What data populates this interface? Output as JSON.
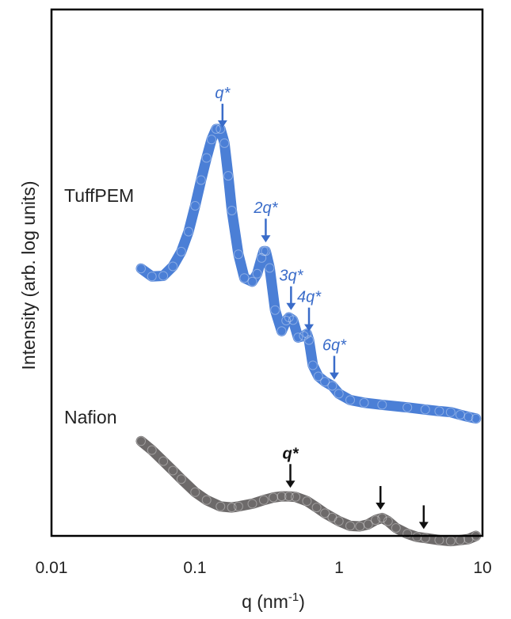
{
  "chart_data": {
    "type": "line",
    "xscale": "log",
    "xlim": [
      0.01,
      10
    ],
    "xticks": [
      "0.01",
      "0.1",
      "1",
      "10"
    ],
    "xlabel": "q (nm",
    "xlabel_sup": "-1",
    "xlabel_end": ")",
    "ylabel": "Intensity (arb. log units)",
    "yscale": "log",
    "ylim": [
      0,
      100
    ],
    "yticks_shown": false,
    "grid": false,
    "colors": {
      "TuffPEM": "#4b7fd6",
      "Nafion": "#6d6a6a",
      "blue_annotation": "#3a6cc9",
      "black_annotation": "#111111"
    },
    "series": [
      {
        "name": "TuffPEM",
        "x": [
          0.042,
          0.05,
          0.06,
          0.07,
          0.08,
          0.09,
          0.1,
          0.11,
          0.12,
          0.13,
          0.14,
          0.15,
          0.16,
          0.17,
          0.18,
          0.2,
          0.22,
          0.25,
          0.27,
          0.29,
          0.3,
          0.31,
          0.33,
          0.36,
          0.4,
          0.43,
          0.45,
          0.48,
          0.52,
          0.57,
          0.6,
          0.62,
          0.66,
          0.72,
          0.8,
          0.9,
          1.0,
          1.2,
          1.5,
          2,
          3,
          4,
          5,
          6,
          7,
          8,
          9
        ],
        "y": [
          50.8,
          49.3,
          49.4,
          51.2,
          54.0,
          57.8,
          62.7,
          67.6,
          71.8,
          75.3,
          77.3,
          77.3,
          74.6,
          68.4,
          61.8,
          53.5,
          49.0,
          48.3,
          49.8,
          52.8,
          54.1,
          54.1,
          50.9,
          42.9,
          38.9,
          40.9,
          41.5,
          41.0,
          37.7,
          38.0,
          38.4,
          37.2,
          32.4,
          30.3,
          29.3,
          28.5,
          27.0,
          25.8,
          25.3,
          24.9,
          24.4,
          24.0,
          23.7,
          23.5,
          23.0,
          22.6,
          22.3
        ]
      },
      {
        "name": "Nafion",
        "x": [
          0.042,
          0.05,
          0.06,
          0.07,
          0.08,
          0.1,
          0.12,
          0.15,
          0.18,
          0.2,
          0.25,
          0.3,
          0.35,
          0.4,
          0.45,
          0.5,
          0.6,
          0.7,
          0.8,
          0.9,
          1.0,
          1.2,
          1.4,
          1.6,
          1.8,
          2.0,
          2.2,
          2.5,
          3.0,
          3.5,
          4.0,
          5,
          6,
          7,
          8,
          9
        ],
        "y": [
          18.0,
          16.3,
          14.2,
          12.4,
          10.8,
          8.3,
          6.8,
          5.6,
          5.4,
          5.6,
          6.1,
          6.8,
          7.3,
          7.5,
          7.5,
          7.4,
          6.6,
          5.4,
          4.3,
          3.5,
          2.8,
          1.9,
          1.8,
          2.2,
          3.0,
          3.4,
          2.8,
          1.5,
          0.4,
          -0.2,
          -0.4,
          -0.8,
          -1.0,
          -0.8,
          -0.6,
          0.0
        ]
      }
    ],
    "series_labels": [
      "TuffPEM",
      "Nafion"
    ],
    "annotations": [
      {
        "series": "TuffPEM",
        "label": "q*",
        "x": 0.155
      },
      {
        "series": "TuffPEM",
        "label": "2q*",
        "x": 0.31
      },
      {
        "series": "TuffPEM",
        "label": "3q*",
        "x": 0.465
      },
      {
        "series": "TuffPEM",
        "label": "4q*",
        "x": 0.62
      },
      {
        "series": "TuffPEM",
        "label": "6q*",
        "x": 0.93
      },
      {
        "series": "Nafion",
        "label": "q*",
        "x": 0.46
      },
      {
        "series": "Nafion",
        "label": "",
        "x": 1.95
      },
      {
        "series": "Nafion",
        "label": "",
        "x": 3.9
      }
    ]
  }
}
